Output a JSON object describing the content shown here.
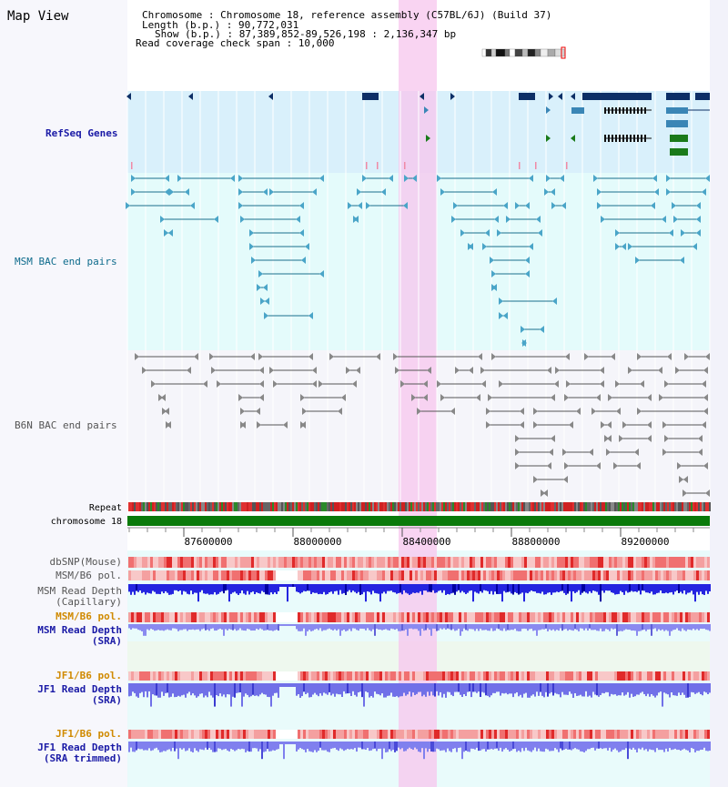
{
  "app": {
    "title": "Map View"
  },
  "info": {
    "chromosome_line": "Chromosome     : Chromosome 18, reference assembly (C57BL/6J) (Build 37)",
    "length_line": "Length (b.p.) : 90,772,031",
    "show_line": "Show (b.p.) : 87,389,852-89,526,198 : 2,136,347 bp",
    "coverage_line": "Read coverage check span : 10,000"
  },
  "tracks": {
    "refseq": "RefSeq Genes",
    "msm_bac": "MSM BAC end pairs",
    "b6n_bac": "B6N BAC end pairs",
    "repeat": "Repeat",
    "chromosome": "chromosome 18",
    "dbsnp": "dbSNP(Mouse)",
    "msm_b6_pol_1": "MSM/B6 pol.",
    "msm_read_depth_cap_1": "MSM Read Depth",
    "msm_read_depth_cap_2": "(Capillary)",
    "msm_b6_pol_2": "MSM/B6 pol.",
    "msm_read_depth_sra_1": "MSM Read Depth",
    "msm_read_depth_sra_2": "(SRA)",
    "jf1_b6_pol_1": "JF1/B6 pol.",
    "jf1_read_depth_sra_1": "JF1 Read Depth",
    "jf1_read_depth_sra_2": "(SRA)",
    "jf1_b6_pol_2": "JF1/B6 pol.",
    "jf1_read_depth_trim_1": "JF1 Read Depth",
    "jf1_read_depth_trim_2": "(SRA trimmed)"
  },
  "axis": {
    "ticks": [
      "87600000",
      "88000000",
      "88400000",
      "88800000",
      "89200000"
    ]
  },
  "colors": {
    "label_blue": "#1a1aa6",
    "label_teal": "#0e6b8c",
    "label_gray": "#555555",
    "label_orange": "#d08a00",
    "highlight": "#f7c6ee",
    "refseq_bg": "#d9f0fb",
    "bac_bg": "#e4fbfb",
    "sra_bg": "#eef8ee"
  }
}
